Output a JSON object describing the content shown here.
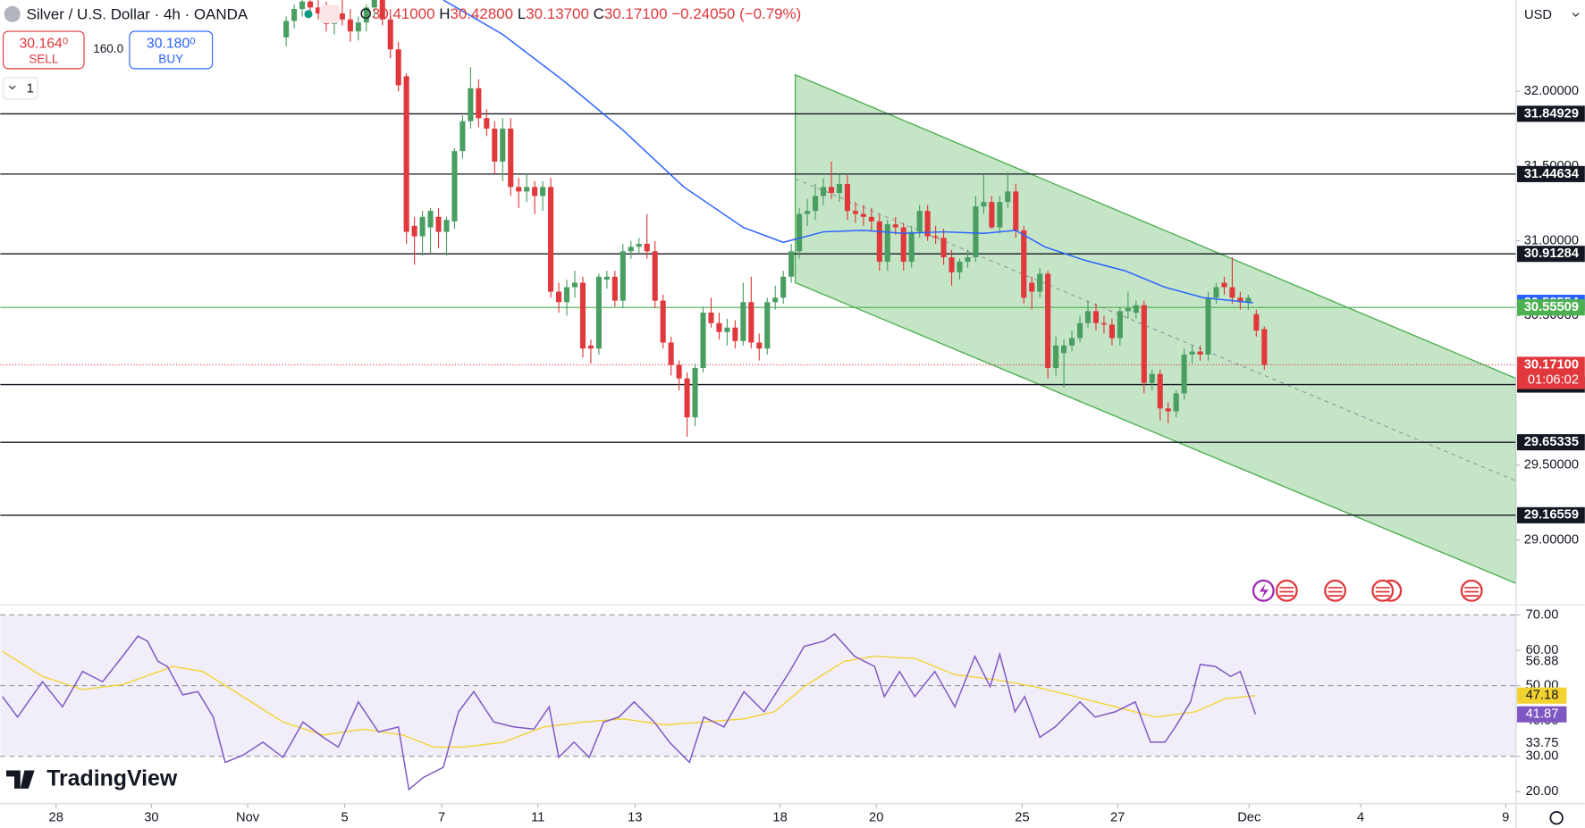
{
  "header": {
    "ohlc": [
      {
        "key": "O",
        "value": "30.41000"
      },
      {
        "key": "H",
        "value": "30.42800"
      },
      {
        "key": "L",
        "value": "30.13700"
      },
      {
        "key": "C",
        "value": "30.17100"
      }
    ],
    "change": "−0.24050 (−0.79%)",
    "sell": {
      "price": "30.164",
      "pip": "0",
      "label": "SELL"
    },
    "spread": "160.0",
    "buy": {
      "price": "30.180",
      "pip": "0",
      "label": "BUY"
    },
    "interval_menu": "1",
    "currency": "USD",
    "logo": "TradingView"
  },
  "chart_data": {
    "type": "candlestick",
    "title": "Silver / U.S. Dollar · 4h · OANDA",
    "up_color": "#4a9e62",
    "down_color": "#e0383d",
    "candles": [
      [
        32.36,
        32.5,
        32.3,
        32.47
      ],
      [
        32.47,
        32.58,
        32.42,
        32.55
      ],
      [
        32.55,
        32.66,
        32.5,
        32.6
      ],
      [
        32.6,
        32.7,
        32.52,
        32.56
      ],
      [
        32.56,
        32.64,
        32.48,
        32.52
      ],
      [
        32.52,
        32.6,
        32.4,
        32.45
      ],
      [
        32.45,
        32.56,
        32.38,
        32.52
      ],
      [
        32.52,
        32.62,
        32.44,
        32.48
      ],
      [
        32.48,
        32.55,
        32.33,
        32.4
      ],
      [
        32.4,
        32.5,
        32.34,
        32.46
      ],
      [
        32.46,
        32.58,
        32.4,
        32.56
      ],
      [
        32.56,
        32.66,
        32.5,
        32.62
      ],
      [
        32.62,
        32.7,
        32.44,
        32.48
      ],
      [
        32.48,
        32.55,
        32.22,
        32.28
      ],
      [
        32.28,
        32.33,
        32.0,
        32.04
      ],
      [
        32.1,
        32.12,
        30.98,
        31.06
      ],
      [
        31.1,
        31.16,
        30.84,
        31.03
      ],
      [
        31.03,
        31.2,
        30.9,
        31.16
      ],
      [
        31.09,
        31.22,
        30.92,
        31.2
      ],
      [
        31.16,
        31.22,
        30.95,
        31.06
      ],
      [
        31.06,
        31.16,
        30.9,
        31.14
      ],
      [
        31.13,
        31.62,
        31.08,
        31.6
      ],
      [
        31.6,
        31.84,
        31.55,
        31.8
      ],
      [
        31.8,
        32.16,
        31.75,
        32.02
      ],
      [
        32.02,
        32.08,
        31.76,
        31.82
      ],
      [
        31.82,
        31.88,
        31.7,
        31.75
      ],
      [
        31.75,
        31.8,
        31.44,
        31.53
      ],
      [
        31.53,
        31.82,
        31.4,
        31.75
      ],
      [
        31.75,
        31.82,
        31.3,
        31.36
      ],
      [
        31.36,
        31.42,
        31.22,
        31.33
      ],
      [
        31.33,
        31.45,
        31.26,
        31.36
      ],
      [
        31.36,
        31.4,
        31.18,
        31.3
      ],
      [
        31.3,
        31.4,
        31.2,
        31.36
      ],
      [
        31.36,
        31.42,
        30.62,
        30.66
      ],
      [
        30.66,
        30.72,
        30.52,
        30.59
      ],
      [
        30.59,
        30.74,
        30.5,
        30.69
      ],
      [
        30.69,
        30.8,
        30.62,
        30.72
      ],
      [
        30.72,
        30.76,
        30.22,
        30.28
      ],
      [
        30.3,
        30.34,
        30.18,
        30.28
      ],
      [
        30.28,
        30.78,
        30.24,
        30.76
      ],
      [
        30.74,
        30.8,
        30.68,
        30.76
      ],
      [
        30.76,
        30.8,
        30.56,
        30.6
      ],
      [
        30.6,
        30.98,
        30.55,
        30.93
      ],
      [
        30.93,
        31.0,
        30.88,
        30.96
      ],
      [
        30.96,
        31.02,
        30.92,
        30.98
      ],
      [
        30.98,
        31.18,
        30.88,
        30.93
      ],
      [
        30.93,
        31.0,
        30.55,
        30.6
      ],
      [
        30.6,
        30.64,
        30.28,
        30.32
      ],
      [
        30.32,
        30.36,
        30.1,
        30.17
      ],
      [
        30.17,
        30.2,
        30.0,
        30.08
      ],
      [
        30.08,
        30.12,
        29.69,
        29.82
      ],
      [
        29.82,
        30.18,
        29.76,
        30.15
      ],
      [
        30.15,
        30.56,
        30.12,
        30.52
      ],
      [
        30.52,
        30.62,
        30.42,
        30.45
      ],
      [
        30.45,
        30.52,
        30.34,
        30.39
      ],
      [
        30.39,
        30.48,
        30.3,
        30.42
      ],
      [
        30.42,
        30.47,
        30.28,
        30.33
      ],
      [
        30.33,
        30.72,
        30.3,
        30.59
      ],
      [
        30.59,
        30.76,
        30.28,
        30.32
      ],
      [
        30.32,
        30.38,
        30.2,
        30.28
      ],
      [
        30.28,
        30.62,
        30.24,
        30.59
      ],
      [
        30.59,
        30.7,
        30.54,
        30.62
      ],
      [
        30.62,
        30.8,
        30.58,
        30.76
      ],
      [
        30.76,
        30.98,
        30.72,
        30.93
      ],
      [
        30.93,
        31.22,
        30.88,
        31.18
      ],
      [
        31.18,
        31.28,
        31.1,
        31.2
      ],
      [
        31.2,
        31.38,
        31.14,
        31.3
      ],
      [
        31.3,
        31.42,
        31.24,
        31.36
      ],
      [
        31.36,
        31.53,
        31.28,
        31.32
      ],
      [
        31.32,
        31.44,
        31.26,
        31.38
      ],
      [
        31.38,
        31.44,
        31.14,
        31.2
      ],
      [
        31.2,
        31.26,
        31.12,
        31.18
      ],
      [
        31.18,
        31.24,
        31.1,
        31.16
      ],
      [
        31.16,
        31.22,
        31.06,
        31.13
      ],
      [
        31.13,
        31.18,
        30.8,
        30.86
      ],
      [
        30.86,
        31.14,
        30.8,
        31.11
      ],
      [
        31.11,
        31.16,
        31.04,
        31.09
      ],
      [
        31.09,
        31.12,
        30.8,
        30.86
      ],
      [
        30.86,
        31.1,
        30.82,
        31.06
      ],
      [
        31.06,
        31.24,
        31.02,
        31.2
      ],
      [
        31.2,
        31.24,
        31.0,
        31.03
      ],
      [
        31.03,
        31.1,
        30.98,
        31.02
      ],
      [
        31.02,
        31.08,
        30.84,
        30.89
      ],
      [
        30.89,
        30.94,
        30.7,
        30.79
      ],
      [
        30.79,
        30.88,
        30.74,
        30.86
      ],
      [
        30.86,
        30.94,
        30.82,
        30.89
      ],
      [
        30.89,
        31.3,
        30.86,
        31.23
      ],
      [
        31.23,
        31.44,
        31.18,
        31.26
      ],
      [
        31.26,
        31.3,
        31.08,
        31.09
      ],
      [
        31.09,
        31.3,
        31.05,
        31.26
      ],
      [
        31.26,
        31.46,
        31.22,
        31.33
      ],
      [
        31.33,
        31.38,
        31.02,
        31.07
      ],
      [
        31.07,
        31.1,
        30.58,
        30.62
      ],
      [
        30.72,
        30.76,
        30.54,
        30.66
      ],
      [
        30.66,
        30.82,
        30.62,
        30.78
      ],
      [
        30.78,
        30.8,
        30.08,
        30.15
      ],
      [
        30.15,
        30.36,
        30.1,
        30.3
      ],
      [
        30.25,
        30.34,
        30.02,
        30.3
      ],
      [
        30.3,
        30.4,
        30.26,
        30.35
      ],
      [
        30.35,
        30.5,
        30.32,
        30.45
      ],
      [
        30.45,
        30.6,
        30.42,
        30.53
      ],
      [
        30.53,
        30.58,
        30.4,
        30.45
      ],
      [
        30.45,
        30.5,
        30.38,
        30.44
      ],
      [
        30.44,
        30.48,
        30.3,
        30.35
      ],
      [
        30.35,
        30.56,
        30.3,
        30.53
      ],
      [
        30.53,
        30.66,
        30.48,
        30.55
      ],
      [
        30.52,
        30.6,
        30.48,
        30.57
      ],
      [
        30.57,
        30.6,
        29.98,
        30.05
      ],
      [
        30.05,
        30.14,
        30.0,
        30.11
      ],
      [
        30.11,
        30.14,
        29.8,
        29.88
      ],
      [
        29.88,
        29.92,
        29.78,
        29.86
      ],
      [
        29.86,
        30.0,
        29.82,
        29.98
      ],
      [
        29.98,
        30.28,
        29.94,
        30.24
      ],
      [
        30.24,
        30.3,
        30.18,
        30.26
      ],
      [
        30.26,
        30.3,
        30.2,
        30.24
      ],
      [
        30.24,
        30.66,
        30.2,
        30.62
      ],
      [
        30.62,
        30.72,
        30.58,
        30.69
      ],
      [
        30.72,
        30.76,
        30.64,
        30.69
      ],
      [
        30.69,
        30.89,
        30.58,
        30.62
      ],
      [
        30.62,
        30.66,
        30.54,
        30.59
      ],
      [
        30.59,
        30.64,
        30.54,
        30.62
      ],
      [
        30.51,
        30.54,
        30.36,
        30.4
      ],
      [
        30.41,
        30.428,
        30.137,
        30.171
      ]
    ],
    "xlim": [
      -35.67,
      153.4
    ],
    "xticks": [
      {
        "value": -28.7,
        "label": "28"
      },
      {
        "value": -16.8,
        "label": "30"
      },
      {
        "value": -4.8,
        "label": "Nov"
      },
      {
        "value": 7.3,
        "label": "5"
      },
      {
        "value": 19.4,
        "label": "7"
      },
      {
        "value": 31.4,
        "label": "11"
      },
      {
        "value": 43.5,
        "label": "13"
      },
      {
        "value": 61.6,
        "label": "18"
      },
      {
        "value": 73.6,
        "label": "20"
      },
      {
        "value": 91.8,
        "label": "25"
      },
      {
        "value": 103.7,
        "label": "27"
      },
      {
        "value": 120.1,
        "label": "Dec"
      },
      {
        "value": 134.0,
        "label": "4"
      },
      {
        "value": 152.1,
        "label": "9"
      }
    ],
    "ylim": [
      28.58,
      32.61
    ],
    "yticks": [
      {
        "value": 29,
        "label": "29.00000"
      },
      {
        "value": 29.5,
        "label": "29.50000"
      },
      {
        "value": 30.5,
        "label": "30.50000"
      },
      {
        "value": 31,
        "label": "31.00000"
      },
      {
        "value": 31.5,
        "label": "31.50000"
      },
      {
        "value": 32,
        "label": "32.00000"
      }
    ],
    "levels": [
      31.84929,
      31.44634,
      30.91284,
      30.03926,
      29.65335,
      29.16559
    ],
    "level_color": "#131722",
    "green_level": 30.55509,
    "green_level_color": "#4caf50",
    "last_price": {
      "value": 30.171,
      "label": "30.17100",
      "countdown": "01:06:02"
    },
    "sma": {
      "color": "#2962ff",
      "x": [
        19.6,
        27,
        34.6,
        42,
        49.6,
        57,
        62,
        67,
        72,
        77,
        82,
        87,
        91,
        94.6,
        99.6,
        104.6,
        109.6,
        114.4,
        120.6
      ],
      "values": [
        32.61,
        32.38,
        32.07,
        31.74,
        31.36,
        31.09,
        30.99,
        31.06,
        31.07,
        31.05,
        31.06,
        31.05,
        31.07,
        30.96,
        30.87,
        30.8,
        30.69,
        30.62,
        30.58554
      ]
    },
    "channel": {
      "color": "#4caf50",
      "x": [
        63.5,
        153.4
      ],
      "upper": [
        32.11,
        30.08
      ],
      "lower": [
        30.72,
        28.71
      ]
    },
    "rsi": {
      "color": "#7e57c2",
      "ma_color": "#f2d230",
      "ylim": [
        16.86,
        72.57
      ],
      "yticks": [
        {
          "value": 20,
          "label": "20.00"
        },
        {
          "value": 30,
          "label": "30.00"
        },
        {
          "value": 40,
          "label": "40.00"
        },
        {
          "value": 50,
          "label": "50.00"
        },
        {
          "value": 60,
          "label": "60.00"
        },
        {
          "value": 70,
          "label": "70.00"
        }
      ],
      "levels": [
        70,
        50,
        30
      ],
      "marks": [
        56.88,
        33.75
      ],
      "x": [
        -35.4,
        -33.5,
        -30.4,
        -27.9,
        -25.4,
        -22.9,
        -20.4,
        -18.5,
        -17.3,
        -16,
        -14.8,
        -12.9,
        -11,
        -9.1,
        -7.6,
        -5.4,
        -2.9,
        -0.4,
        2.1,
        4.6,
        6.5,
        9,
        11.5,
        14,
        15.3,
        17.1,
        19.6,
        21.5,
        23.4,
        25.9,
        28.4,
        30.9,
        32.8,
        34,
        35.9,
        37.8,
        39.6,
        41.5,
        43.4,
        45.9,
        47.8,
        50.3,
        52.1,
        54.6,
        57.1,
        59.6,
        62.8,
        64.6,
        67.1,
        68.4,
        70.9,
        73.4,
        74.6,
        76.5,
        78.4,
        80.9,
        83.4,
        85.9,
        87.8,
        89,
        90.9,
        92.1,
        94,
        95.9,
        99,
        100.9,
        103.4,
        105.9,
        107.8,
        109.6,
        110.9,
        112.8,
        114,
        115.9,
        117.8,
        119,
        120.9
      ],
      "values": [
        46.9,
        41.1,
        51.1,
        44,
        54,
        51.1,
        58.3,
        64,
        62.6,
        56.9,
        55.4,
        47.4,
        48.3,
        41.1,
        28.3,
        30.3,
        34,
        29.7,
        39.7,
        35.4,
        32.6,
        45.4,
        36.9,
        38.3,
        20.6,
        24,
        26.9,
        42.6,
        48.3,
        39.7,
        38.3,
        37.7,
        44,
        29.7,
        34,
        29.7,
        39.7,
        41.1,
        45.4,
        39.7,
        34,
        28.3,
        41.1,
        38.3,
        48.3,
        42.6,
        54,
        61.1,
        62.6,
        64.6,
        58.3,
        55.4,
        46.9,
        54,
        46.9,
        54,
        44,
        58.3,
        49.7,
        58.9,
        42.6,
        46.9,
        35.4,
        38.3,
        45.4,
        41.1,
        42.6,
        45.4,
        34,
        34,
        38.3,
        45.4,
        56,
        55.4,
        52.6,
        54,
        41.87
      ],
      "ma_x": [
        -35.4,
        -30.4,
        -25.4,
        -20.4,
        -14.1,
        -10.4,
        -5.4,
        -0.4,
        4.6,
        9.6,
        14.6,
        18.4,
        22.1,
        27.1,
        32.1,
        37.1,
        42.1,
        47.1,
        52.1,
        57.1,
        60.9,
        64.6,
        69.6,
        73.4,
        78.4,
        83.4,
        88.4,
        93.4,
        98.4,
        103.4,
        108.4,
        113.4,
        117.1,
        120.9
      ],
      "ma_values": [
        59.7,
        52.6,
        48.9,
        50.3,
        55.4,
        54,
        46.9,
        39.7,
        36,
        37.7,
        36,
        32.6,
        32.6,
        34,
        38.3,
        39.7,
        40.6,
        38.9,
        39.7,
        40.6,
        42.6,
        49.7,
        56.9,
        58.3,
        57.7,
        53.1,
        51.7,
        49.7,
        46.9,
        44,
        41.1,
        42.6,
        46.3,
        47.18
      ]
    }
  }
}
